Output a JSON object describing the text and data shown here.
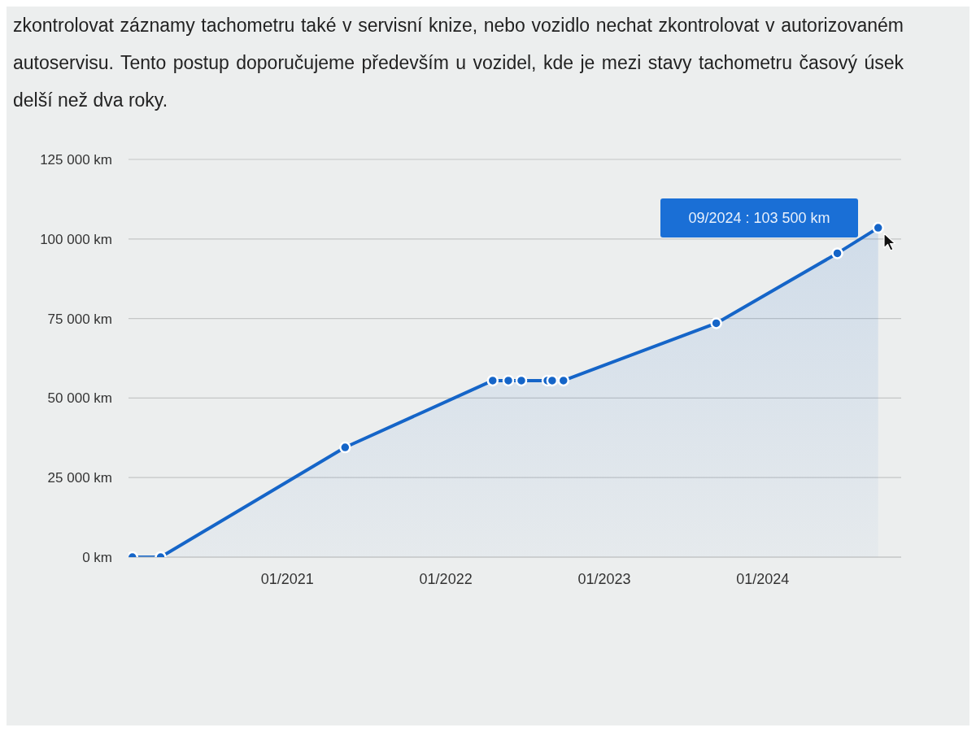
{
  "chart_data": {
    "type": "area",
    "annotations": [
      "zkontrolovat záznamy tachometru také v servisní knize, nebo vozidlo nechat zkontrolovat v autorizovaném autoservisu. Tento postup doporučujeme především u vozidel, kde je mezi stavy tachometru časový úsek delší než dva roky.",
      "09/2024 : 103 500 km"
    ],
    "x": [
      "2020-01-10",
      "2020-03-15",
      "2021-05-14",
      "2022-04-19",
      "2022-05-25",
      "2022-06-24",
      "2022-08-23",
      "2022-09-03",
      "2022-09-29",
      "2023-09-16",
      "2024-06-21",
      "2024-09-23"
    ],
    "series": [
      {
        "color": "#1565c8",
        "values": [
          0,
          0,
          34500,
          55500,
          55500,
          55500,
          55500,
          55500,
          55500,
          73500,
          95500,
          103500
        ]
      }
    ],
    "xlim": [
      "2020-01-01",
      "2024-11-15"
    ],
    "xticks": [
      {
        "value": "2021-01",
        "label": "01/2021"
      },
      {
        "value": "2022-01",
        "label": "01/2022"
      },
      {
        "value": "2023-01",
        "label": "01/2023"
      },
      {
        "value": "2024-01",
        "label": "01/2024"
      }
    ],
    "ylim": [
      0,
      125000
    ],
    "yticks": [
      {
        "value": 0,
        "label": "0 km"
      },
      {
        "value": 25000,
        "label": "25 000 km"
      },
      {
        "value": 50000,
        "label": "50 000 km"
      },
      {
        "value": 75000,
        "label": "75 000 km"
      },
      {
        "value": 100000,
        "label": "100 000 km"
      },
      {
        "value": 125000,
        "label": "125 000 km"
      }
    ],
    "grid": "y",
    "marker": "circle",
    "line_style": "solid"
  }
}
